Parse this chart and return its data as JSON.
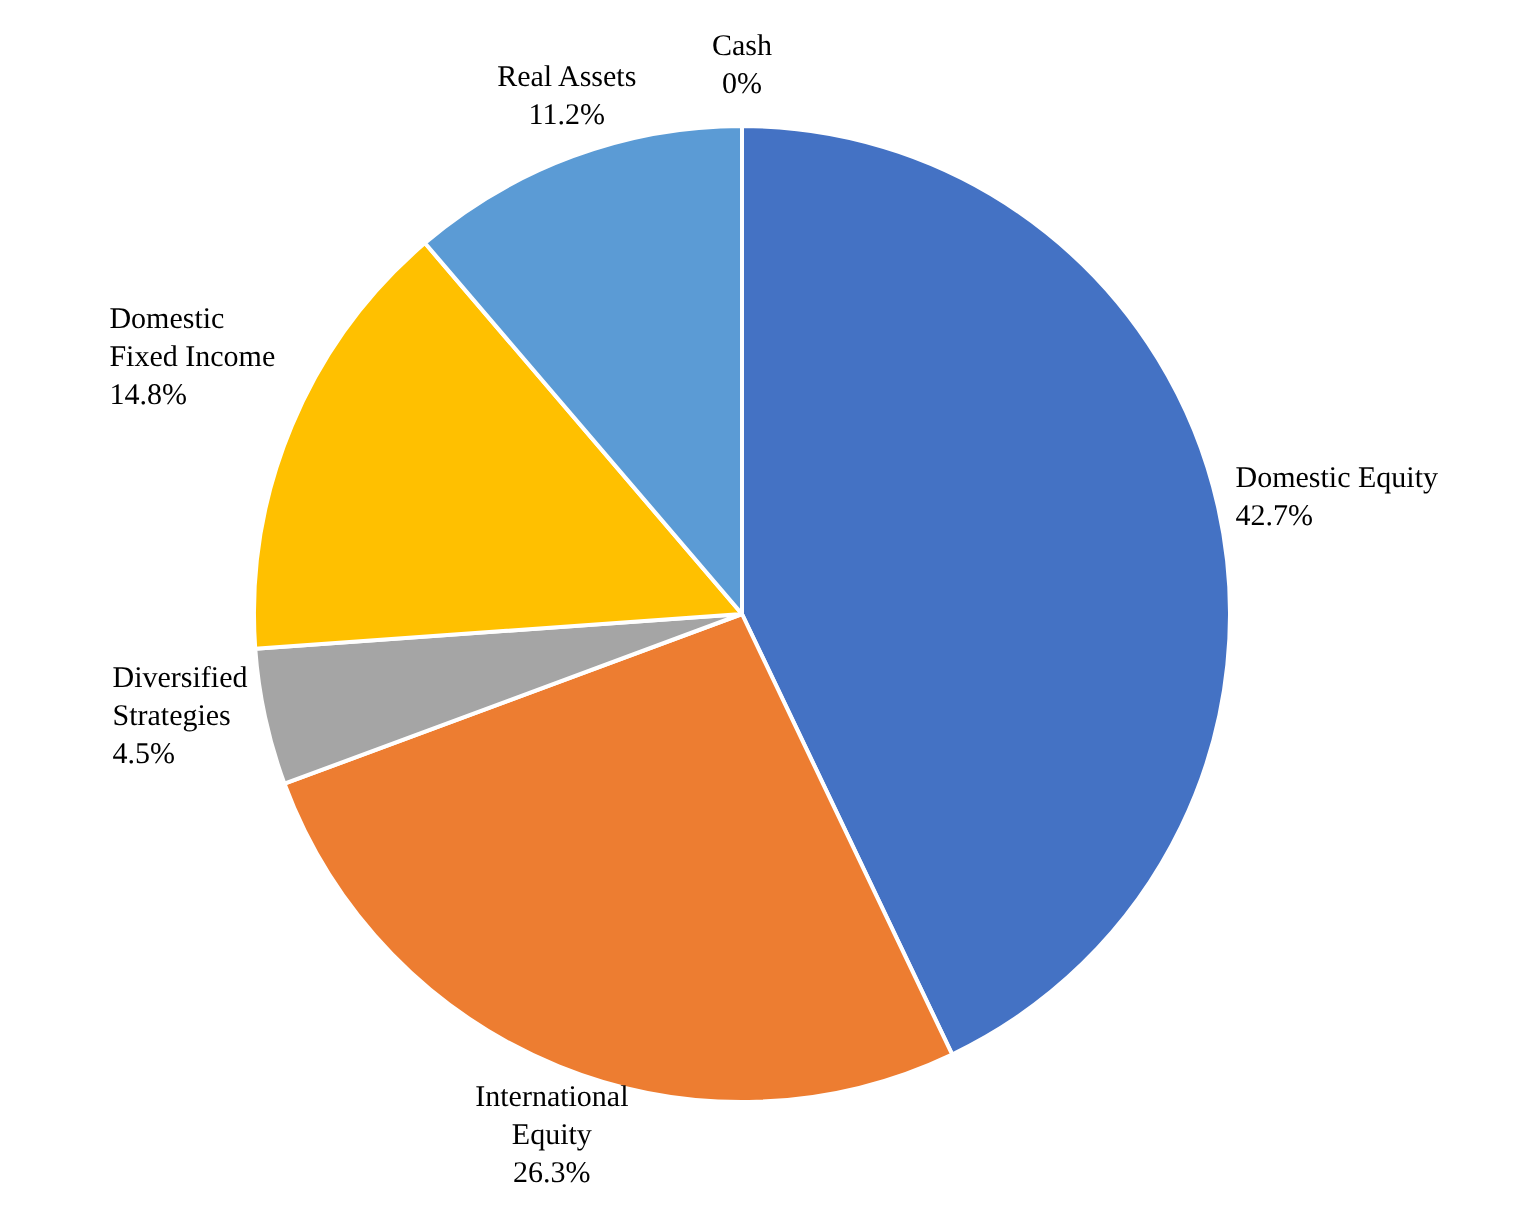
{
  "chart_data": {
    "type": "pie",
    "categories": [
      "Domestic Equity",
      "International Equity",
      "Diversified Strategies",
      "Domestic Fixed Income",
      "Real Assets",
      "Cash"
    ],
    "values": [
      42.7,
      26.3,
      4.5,
      14.8,
      11.2,
      0
    ],
    "colors": [
      "#4472c4",
      "#ed7d31",
      "#a5a5a5",
      "#ffc000",
      "#5b9bd5",
      "#70ad47"
    ],
    "value_labels": [
      "42.7%",
      "26.3%",
      "4.5%",
      "14.8%",
      "11.2%",
      "0%"
    ],
    "legend": false
  }
}
